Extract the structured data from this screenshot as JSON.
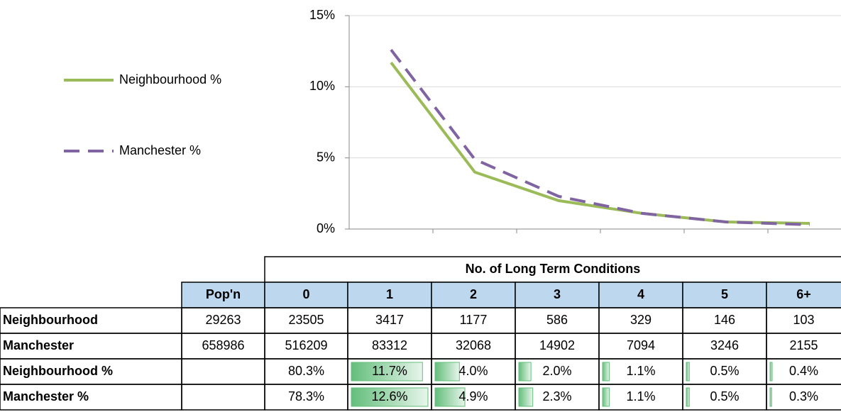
{
  "chart_data": {
    "type": "line",
    "categories": [
      null,
      null,
      null,
      null,
      null,
      null
    ],
    "series": [
      {
        "name": "Neighbourhood %",
        "color": "#9bbb59",
        "style": "solid",
        "values": [
          11.7,
          4.0,
          2.0,
          1.1,
          0.5,
          0.4
        ]
      },
      {
        "name": "Manchester %",
        "color": "#8064a2",
        "style": "dashed",
        "values": [
          12.6,
          4.9,
          2.3,
          1.1,
          0.5,
          0.3
        ]
      }
    ],
    "ylim": [
      0,
      15
    ],
    "yticks": [
      {
        "value": 0,
        "label": "0%"
      },
      {
        "value": 5,
        "label": "5%"
      },
      {
        "value": 10,
        "label": "10%"
      },
      {
        "value": 15,
        "label": "15%"
      }
    ],
    "grid": true,
    "legend": "left"
  },
  "table": {
    "title": "No. of Long Term Conditions",
    "columns": [
      "Pop'n",
      "0",
      "1",
      "2",
      "3",
      "4",
      "5",
      "6+"
    ],
    "rows": [
      [
        "Neighbourhood",
        29263,
        23505,
        3417,
        1177,
        586,
        329,
        146,
        103
      ],
      [
        "Manchester",
        658986,
        516209,
        83312,
        32068,
        14902,
        7094,
        3246,
        2155
      ],
      [
        "Neighbourhood %",
        null,
        "80.3%",
        "11.7%",
        "4.0%",
        "2.0%",
        "1.1%",
        "0.5%",
        "0.4%"
      ],
      [
        "Manchester %",
        null,
        "78.3%",
        "12.6%",
        "4.9%",
        "2.3%",
        "1.1%",
        "0.5%",
        "0.3%"
      ]
    ]
  }
}
